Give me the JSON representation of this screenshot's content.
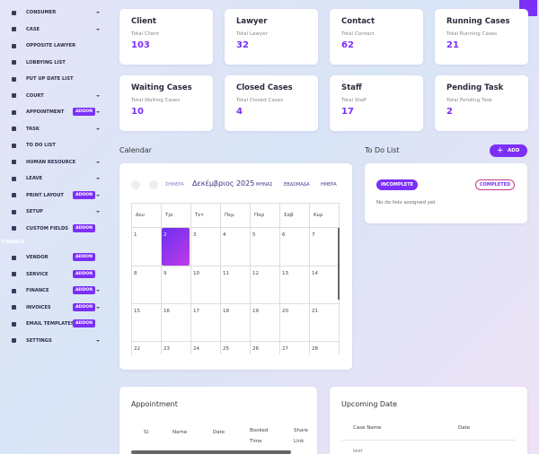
{
  "sidebar": {
    "items": [
      {
        "label": "CONSUMER",
        "submenu": true
      },
      {
        "label": "CASE",
        "submenu": true
      },
      {
        "label": "OPPOSITE LAWYER"
      },
      {
        "label": "LOBBYING LIST"
      },
      {
        "label": "PUT UP DATE LIST"
      },
      {
        "label": "COURT",
        "submenu": true
      },
      {
        "label": "APPOINTMENT",
        "badge": "ADDON",
        "submenu": true
      },
      {
        "label": "TASK",
        "submenu": true
      },
      {
        "label": "TO DO LIST"
      },
      {
        "label": "HUMAN RESOURCE",
        "submenu": true
      },
      {
        "label": "LEAVE",
        "submenu": true
      },
      {
        "label": "PRINT LAYOUT",
        "badge": "ADDON",
        "submenu": true
      },
      {
        "label": "SETUP",
        "submenu": true
      },
      {
        "label": "CUSTOM FIELDS",
        "badge": "ADDON"
      },
      {
        "label": "FINANCE",
        "section": true
      },
      {
        "label": "VENDOR",
        "badge": "ADDON"
      },
      {
        "label": "SERVICE",
        "badge": "ADDON"
      },
      {
        "label": "FINANCE",
        "badge": "ADDON",
        "submenu": true
      },
      {
        "label": "INVOICES",
        "badge": "ADDON",
        "submenu": true
      },
      {
        "label": "EMAIL TEMPLATES",
        "badge": "ADDON"
      },
      {
        "label": "SETTINGS",
        "submenu": true
      }
    ]
  },
  "stats": [
    {
      "title": "Client",
      "subtitle": "Total Client",
      "value": 103
    },
    {
      "title": "Lawyer",
      "subtitle": "Total Lawyer",
      "value": 32
    },
    {
      "title": "Contact",
      "subtitle": "Total Contact",
      "value": 62
    },
    {
      "title": "Running Cases",
      "subtitle": "Total Running Cases",
      "value": 21
    },
    {
      "title": "Waiting Cases",
      "subtitle": "Total Waiting Cases",
      "value": 10
    },
    {
      "title": "Closed Cases",
      "subtitle": "Total Closed Cases",
      "value": 4
    },
    {
      "title": "Staff",
      "subtitle": "Total Staff",
      "value": 17
    },
    {
      "title": "Pending Task",
      "subtitle": "Total Pending Task",
      "value": 2
    }
  ],
  "calendar": {
    "title": "Calendar",
    "today_button": "ΣΗΜΕΡΑ",
    "month": "Δεκέμβριος 2025",
    "views": [
      "ΜΗΝΑΣ",
      "ΕΒΔΟΜΑΔΑ",
      "ΗΜΕΡΑ"
    ],
    "weekdays": [
      "Δευ",
      "Τρι",
      "Τετ",
      "Πεμ",
      "Παρ",
      "Σαβ",
      "Κυρ"
    ],
    "weeks": [
      [
        1,
        2,
        3,
        4,
        5,
        6,
        7
      ],
      [
        8,
        9,
        10,
        11,
        12,
        13,
        14
      ],
      [
        15,
        16,
        17,
        18,
        19,
        20,
        21
      ],
      [
        22,
        23,
        24,
        25,
        26,
        27,
        28
      ]
    ]
  },
  "todo": {
    "title": "To Do List",
    "add": "ADD",
    "tabs": [
      "INCOMPLETE",
      "COMPLETED"
    ],
    "empty": "No do lists assigned yet"
  },
  "appointment": {
    "title": "Appointment",
    "columns": [
      "Sl.",
      "Name",
      "Date",
      "Booked Time",
      "Share Link"
    ]
  },
  "upcoming": {
    "title": "Upcoming Date",
    "columns": [
      "Case Name",
      "Date"
    ],
    "rows": [
      [
        "test"
      ]
    ]
  }
}
